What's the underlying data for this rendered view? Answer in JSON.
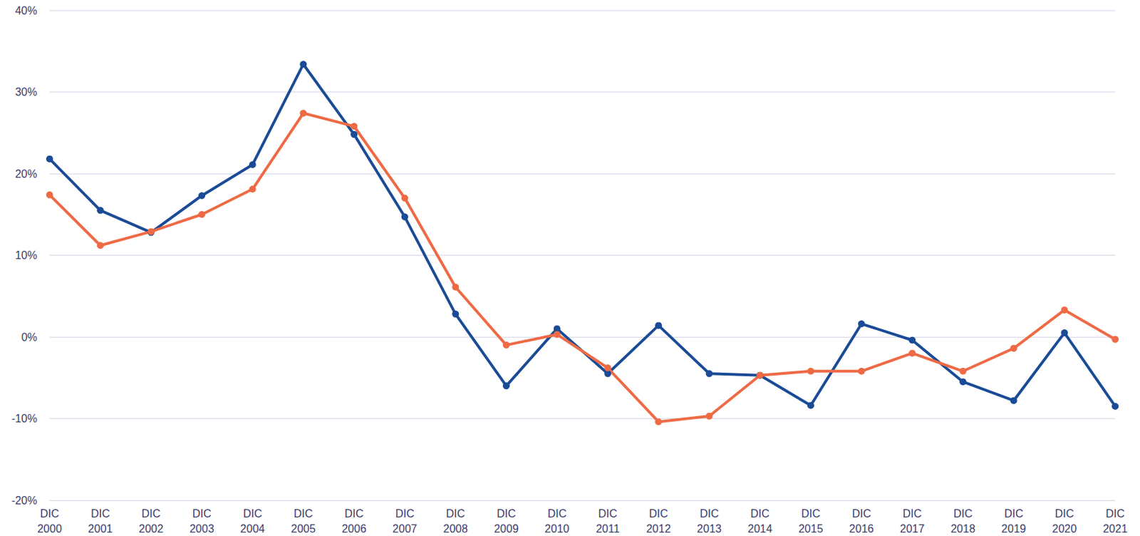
{
  "chart_data": {
    "type": "line",
    "categories": [
      "DIC 2000",
      "DIC 2001",
      "DIC 2002",
      "DIC 2003",
      "DIC 2004",
      "DIC 2005",
      "DIC 2006",
      "DIC 2007",
      "DIC 2008",
      "DIC 2009",
      "DIC 2010",
      "DIC 2011",
      "DIC 2012",
      "DIC 2013",
      "DIC 2014",
      "DIC 2015",
      "DIC 2016",
      "DIC 2017",
      "DIC 2018",
      "DIC 2019",
      "DIC 2020",
      "DIC 2021"
    ],
    "series": [
      {
        "color": "#1a4b96",
        "marker": "circle",
        "line_style": "solid",
        "values": [
          21.8,
          15.5,
          12.8,
          17.3,
          21.1,
          33.4,
          24.8,
          14.7,
          2.8,
          -6.0,
          1.0,
          -4.5,
          1.4,
          -4.5,
          -4.7,
          -8.4,
          1.6,
          -0.4,
          -5.5,
          -7.8,
          0.5,
          -8.5
        ]
      },
      {
        "color": "#ee6a45",
        "marker": "circle",
        "line_style": "solid",
        "values": [
          17.4,
          11.2,
          12.9,
          15.0,
          18.1,
          27.4,
          25.8,
          17.0,
          6.1,
          -1.0,
          0.3,
          -3.8,
          -10.4,
          -9.7,
          -4.7,
          -4.2,
          -4.2,
          -2.0,
          -4.2,
          -1.4,
          3.3,
          -0.3
        ]
      }
    ],
    "ylim": [
      -20,
      40
    ],
    "yticks": [
      {
        "value": -20,
        "label": "-20%"
      },
      {
        "value": -10,
        "label": "-10%"
      },
      {
        "value": 0,
        "label": "0%"
      },
      {
        "value": 10,
        "label": "10%"
      },
      {
        "value": 20,
        "label": "20%"
      },
      {
        "value": 30,
        "label": "30%"
      },
      {
        "value": 40,
        "label": "40%"
      }
    ],
    "grid": true
  }
}
